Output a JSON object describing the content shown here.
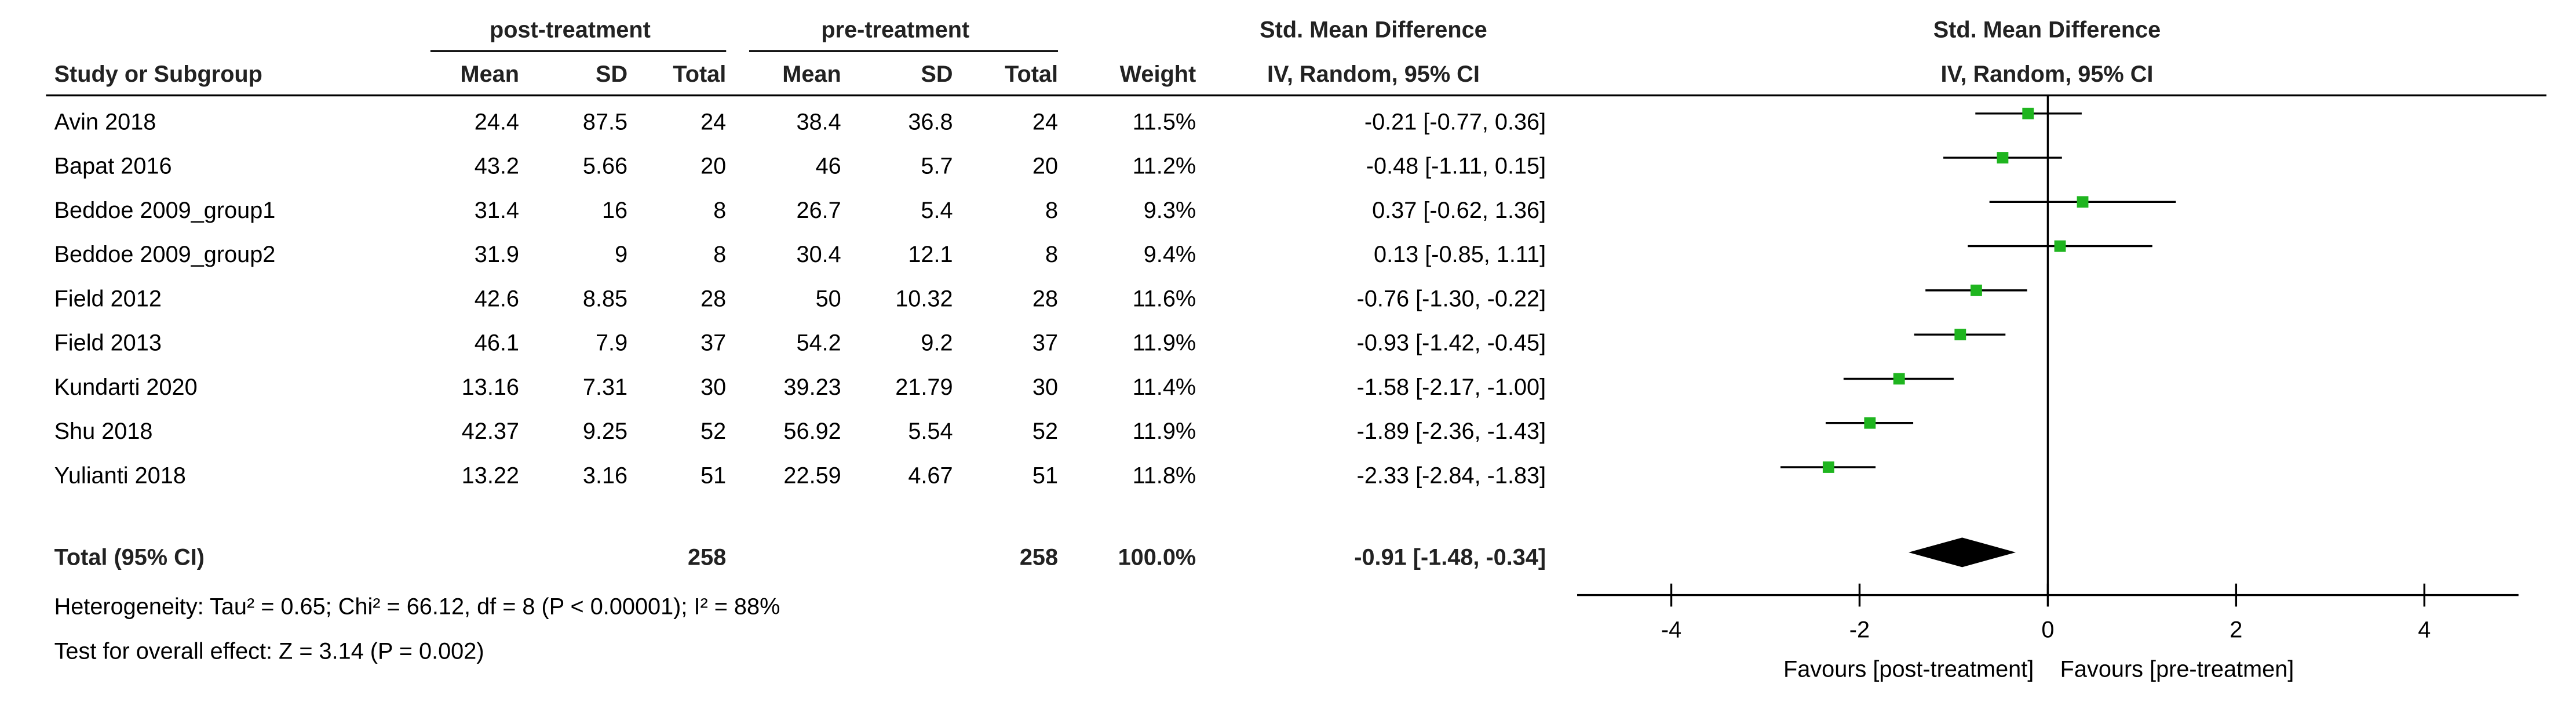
{
  "chart_data": {
    "type": "forest",
    "group_headers": [
      "post-treatment",
      "pre-treatment"
    ],
    "effect_header": "Std. Mean Difference",
    "method_header": "IV, Random, 95% CI",
    "columns": [
      "Study or Subgroup",
      "Mean",
      "SD",
      "Total",
      "Mean",
      "SD",
      "Total",
      "Weight"
    ],
    "studies": [
      {
        "name": "Avin 2018",
        "post": [
          24.4,
          87.5,
          24
        ],
        "pre": [
          38.4,
          36.8,
          24
        ],
        "weight": "11.5%",
        "smd": -0.21,
        "ci_low": -0.77,
        "ci_high": 0.36,
        "ci_label": "-0.21 [-0.77, 0.36]"
      },
      {
        "name": "Bapat 2016",
        "post": [
          43.2,
          5.66,
          20
        ],
        "pre": [
          46,
          5.7,
          20
        ],
        "weight": "11.2%",
        "smd": -0.48,
        "ci_low": -1.11,
        "ci_high": 0.15,
        "ci_label": "-0.48 [-1.11, 0.15]"
      },
      {
        "name": "Beddoe 2009_group1",
        "post": [
          31.4,
          16,
          8
        ],
        "pre": [
          26.7,
          5.4,
          8
        ],
        "weight": "9.3%",
        "smd": 0.37,
        "ci_low": -0.62,
        "ci_high": 1.36,
        "ci_label": "0.37 [-0.62, 1.36]"
      },
      {
        "name": "Beddoe 2009_group2",
        "post": [
          31.9,
          9,
          8
        ],
        "pre": [
          30.4,
          12.1,
          8
        ],
        "weight": "9.4%",
        "smd": 0.13,
        "ci_low": -0.85,
        "ci_high": 1.11,
        "ci_label": "0.13 [-0.85, 1.11]"
      },
      {
        "name": "Field 2012",
        "post": [
          42.6,
          8.85,
          28
        ],
        "pre": [
          50,
          10.32,
          28
        ],
        "weight": "11.6%",
        "smd": -0.76,
        "ci_low": -1.3,
        "ci_high": -0.22,
        "ci_label": "-0.76 [-1.30, -0.22]"
      },
      {
        "name": "Field 2013",
        "post": [
          46.1,
          7.9,
          37
        ],
        "pre": [
          54.2,
          9.2,
          37
        ],
        "weight": "11.9%",
        "smd": -0.93,
        "ci_low": -1.42,
        "ci_high": -0.45,
        "ci_label": "-0.93 [-1.42, -0.45]"
      },
      {
        "name": "Kundarti 2020",
        "post": [
          13.16,
          7.31,
          30
        ],
        "pre": [
          39.23,
          21.79,
          30
        ],
        "weight": "11.4%",
        "smd": -1.58,
        "ci_low": -2.17,
        "ci_high": -1,
        "ci_label": "-1.58 [-2.17, -1.00]"
      },
      {
        "name": "Shu 2018",
        "post": [
          42.37,
          9.25,
          52
        ],
        "pre": [
          56.92,
          5.54,
          52
        ],
        "weight": "11.9%",
        "smd": -1.89,
        "ci_low": -2.36,
        "ci_high": -1.43,
        "ci_label": "-1.89 [-2.36, -1.43]"
      },
      {
        "name": "Yulianti 2018",
        "post": [
          13.22,
          3.16,
          51
        ],
        "pre": [
          22.59,
          4.67,
          51
        ],
        "weight": "11.8%",
        "smd": -2.33,
        "ci_low": -2.84,
        "ci_high": -1.83,
        "ci_label": "-2.33 [-2.84, -1.83]"
      }
    ],
    "total": {
      "name": "Total (95% CI)",
      "post_total": 258,
      "pre_total": 258,
      "weight": "100.0%",
      "smd": -0.91,
      "ci_low": -1.48,
      "ci_high": -0.34,
      "ci_label": "-0.91 [-1.48, -0.34]"
    },
    "heterogeneity": "Heterogeneity: Tau² = 0.65; Chi² = 66.12, df = 8 (P < 0.00001); I² = 88%",
    "overall_effect": "Test for overall effect: Z = 3.14 (P = 0.002)",
    "xlim": [
      -5,
      5
    ],
    "xticks": [
      -4,
      -2,
      0,
      2,
      4
    ],
    "xlabel_left": "Favours [post-treatment]",
    "xlabel_right": "Favours [pre-treatmen]",
    "marker_color": "#1fb51f",
    "line_color": "#000000"
  }
}
